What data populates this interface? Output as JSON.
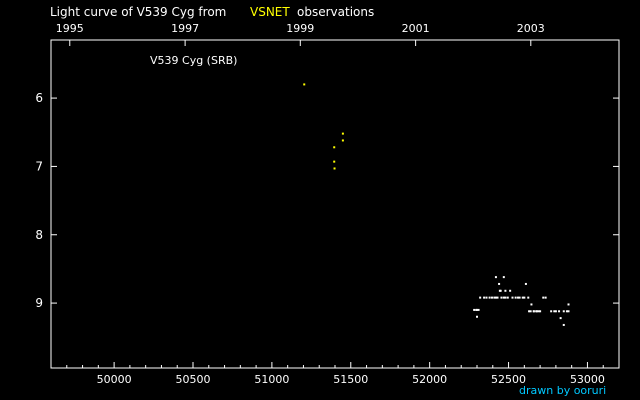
{
  "chart_data": {
    "type": "scatter",
    "title_prefix": "Light curve of V539 Cyg from",
    "title_highlight": "VSNET",
    "title_suffix": "observations",
    "star_label": "V539 Cyg (SRB)",
    "credit": "drawn by ooruri",
    "xlim": [
      49600,
      53200
    ],
    "ylim": [
      9.95,
      5.15
    ],
    "x_ticks": [
      "50000",
      "50500",
      "51000",
      "51500",
      "52000",
      "52500",
      "53000"
    ],
    "top_ticks": [
      "1995",
      "1997",
      "1999",
      "2001",
      "2003"
    ],
    "top_tick_jd": [
      49719,
      50450,
      51180,
      51911,
      52641
    ],
    "y_ticks": [
      "6",
      "7",
      "8",
      "9"
    ],
    "colors": {
      "background": "#000000",
      "axes": "#ffffff",
      "highlight": "#ffff00",
      "credit": "#00c8ff",
      "series_yellow": "#ffff00",
      "series_white": "#ffffff"
    },
    "series": [
      {
        "color": "#ffff00",
        "x": [
          51205,
          51395,
          51395,
          51397,
          51450,
          51450
        ],
        "y": [
          5.8,
          6.72,
          6.93,
          7.03,
          6.52,
          6.62
        ]
      },
      {
        "color": "#ffffff",
        "x": [
          52282,
          52300,
          52320,
          52345,
          52360,
          52380,
          52395,
          52410,
          52420,
          52430,
          52445,
          52455,
          52470,
          52480,
          52495,
          52510,
          52525,
          52545,
          52560,
          52570,
          52590,
          52610,
          52625,
          52645,
          52660,
          52675,
          52690,
          52720,
          52735,
          52770,
          52790,
          52800,
          52830,
          52850,
          52870,
          52880,
          52880,
          52310,
          52295,
          52300,
          52420,
          52440,
          52450,
          52470,
          52480,
          52600,
          52630,
          52640,
          52660,
          52680,
          52700,
          52820,
          52850
        ],
        "y": [
          9.1,
          9.2,
          8.92,
          8.92,
          8.92,
          8.92,
          8.92,
          8.92,
          8.62,
          8.92,
          8.82,
          8.92,
          8.62,
          8.82,
          8.92,
          8.82,
          8.92,
          8.92,
          8.92,
          8.92,
          8.92,
          8.72,
          8.92,
          9.02,
          9.12,
          9.12,
          9.12,
          8.92,
          8.92,
          9.12,
          9.12,
          9.12,
          9.22,
          9.32,
          9.12,
          9.02,
          9.12,
          9.1,
          9.1,
          9.1,
          8.92,
          8.72,
          8.82,
          8.92,
          8.92,
          8.92,
          9.12,
          9.12,
          9.12,
          9.12,
          9.12,
          9.12,
          9.12
        ]
      }
    ]
  }
}
